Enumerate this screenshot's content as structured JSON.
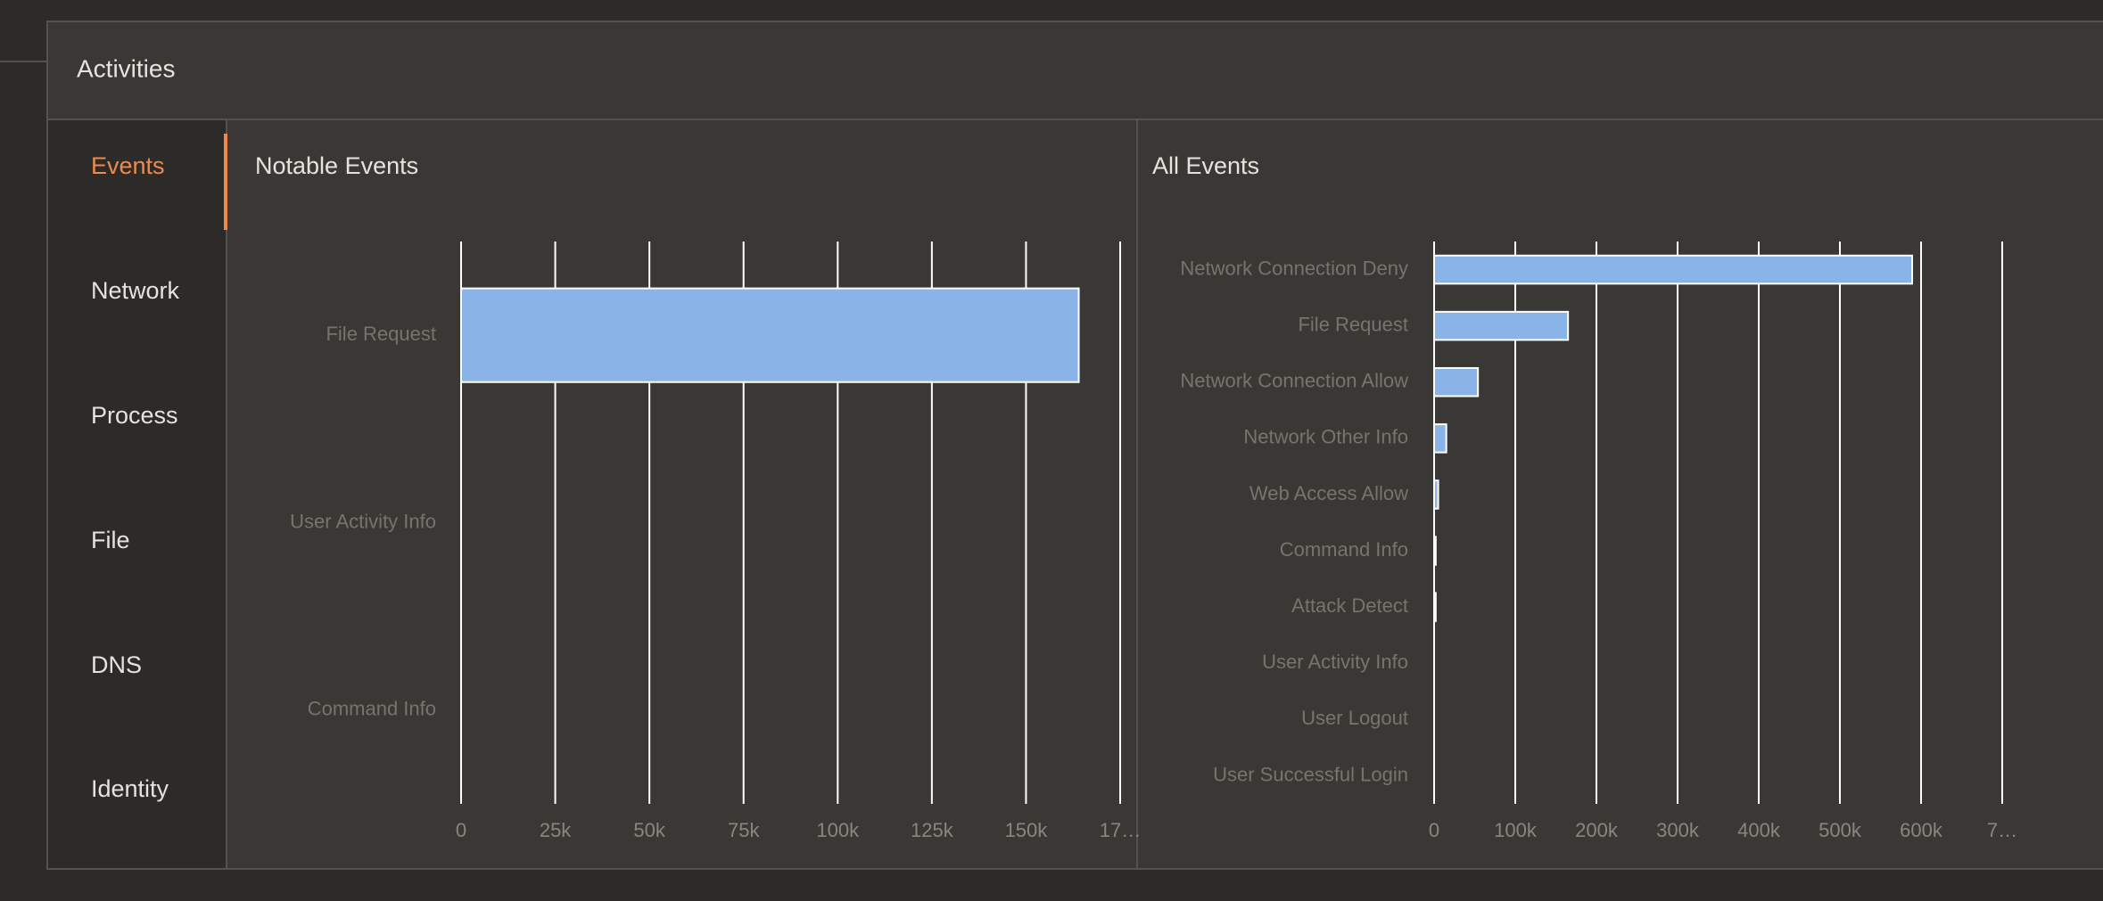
{
  "panel": {
    "title": "Activities",
    "tabs": [
      "Events",
      "Network",
      "Process",
      "File",
      "DNS",
      "Identity"
    ],
    "active_tab": 0
  },
  "chart_data": [
    {
      "type": "barh",
      "title": "Notable Events",
      "categories": [
        "File Request",
        "User Activity Info",
        "Command Info"
      ],
      "values": [
        164000,
        0,
        0
      ],
      "color": "#8ab4e8",
      "xlim": [
        0,
        175000
      ],
      "xticks": [
        0,
        {
          "value": 25000,
          "label": "25k"
        },
        {
          "value": 50000,
          "label": "50k"
        },
        {
          "value": 75000,
          "label": "75k"
        },
        {
          "value": 100000,
          "label": "100k"
        },
        {
          "value": 125000,
          "label": "125k"
        },
        {
          "value": 150000,
          "label": "150k"
        },
        {
          "value": 175000,
          "label": "17…"
        }
      ],
      "grid": true
    },
    {
      "type": "barh",
      "title": "All Events",
      "categories": [
        "Network Connection Deny",
        "File Request",
        "Network Connection Allow",
        "Network Other Info",
        "Web Access Allow",
        "Command Info",
        "Attack Detect",
        "User Activity Info",
        "User Logout",
        "User Successful Login"
      ],
      "values": [
        589000,
        165000,
        54000,
        15000,
        5000,
        2000,
        2000,
        0,
        0,
        0
      ],
      "color": "#8ab4e8",
      "xlim": [
        0,
        700000
      ],
      "xticks": [
        0,
        {
          "value": 100000,
          "label": "100k"
        },
        {
          "value": 200000,
          "label": "200k"
        },
        {
          "value": 300000,
          "label": "300k"
        },
        {
          "value": 400000,
          "label": "400k"
        },
        {
          "value": 500000,
          "label": "500k"
        },
        {
          "value": 600000,
          "label": "600k"
        },
        {
          "value": 700000,
          "label": "7…"
        }
      ],
      "grid": true
    }
  ]
}
